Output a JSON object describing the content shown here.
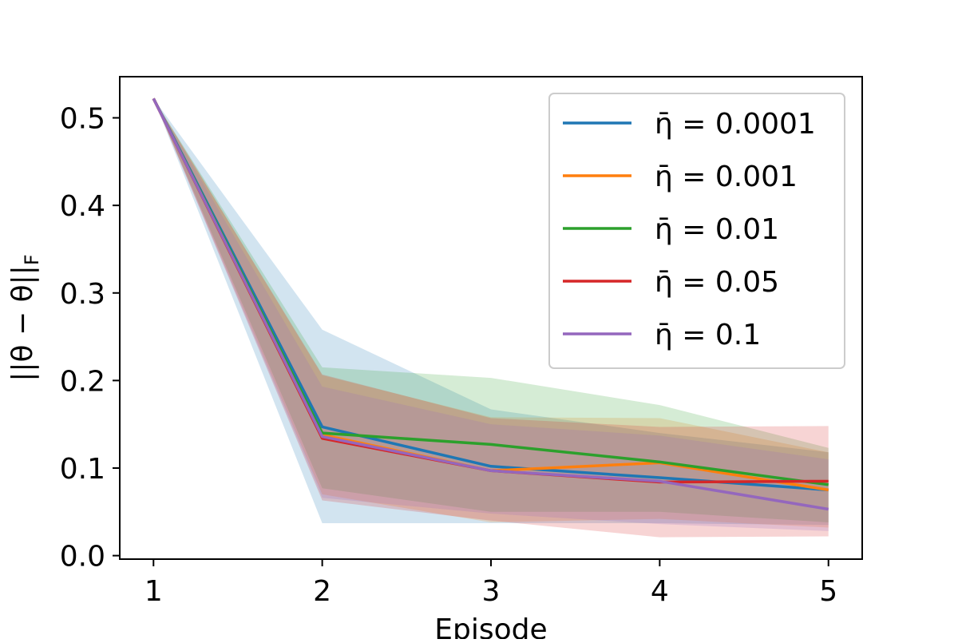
{
  "chart_data": {
    "type": "line",
    "title": "",
    "xlabel": "Episode",
    "ylabel": "||θ − θ||_F",
    "ylabel_main": "||θ − θ||",
    "ylabel_sub": "F",
    "x": [
      1,
      2,
      3,
      4,
      5
    ],
    "xticks": [
      "1",
      "2",
      "3",
      "4",
      "5"
    ],
    "yticks": [
      "0.0",
      "0.1",
      "0.2",
      "0.3",
      "0.4",
      "0.5"
    ],
    "xlim": [
      0.8,
      5.2
    ],
    "ylim": [
      -0.004,
      0.547
    ],
    "grid": false,
    "legend_position": "top-right",
    "series": [
      {
        "name": "η̄ = 0.0001",
        "color": "#1f77b4",
        "values": [
          0.522,
          0.147,
          0.102,
          0.089,
          0.075
        ],
        "lower": [
          0.522,
          0.037,
          0.037,
          0.037,
          0.035
        ],
        "upper": [
          0.522,
          0.258,
          0.167,
          0.14,
          0.118
        ]
      },
      {
        "name": "η̄ = 0.001",
        "color": "#ff7f0e",
        "values": [
          0.522,
          0.138,
          0.097,
          0.106,
          0.075
        ],
        "lower": [
          0.522,
          0.07,
          0.038,
          0.042,
          0.032
        ],
        "upper": [
          0.522,
          0.206,
          0.158,
          0.157,
          0.118
        ]
      },
      {
        "name": "η̄ = 0.01",
        "color": "#2ca02c",
        "values": [
          0.522,
          0.14,
          0.127,
          0.107,
          0.081
        ],
        "lower": [
          0.522,
          0.077,
          0.05,
          0.05,
          0.038
        ],
        "upper": [
          0.522,
          0.215,
          0.203,
          0.172,
          0.123
        ]
      },
      {
        "name": "η̄ = 0.05",
        "color": "#d62728",
        "values": [
          0.522,
          0.134,
          0.097,
          0.084,
          0.085
        ],
        "lower": [
          0.522,
          0.063,
          0.04,
          0.021,
          0.022
        ],
        "upper": [
          0.522,
          0.207,
          0.157,
          0.147,
          0.148
        ]
      },
      {
        "name": "η̄ = 0.1",
        "color": "#9467bd",
        "values": [
          0.522,
          0.136,
          0.097,
          0.085,
          0.053
        ],
        "lower": [
          0.522,
          0.066,
          0.048,
          0.036,
          0.028
        ],
        "upper": [
          0.522,
          0.193,
          0.15,
          0.137,
          0.11
        ]
      }
    ]
  }
}
